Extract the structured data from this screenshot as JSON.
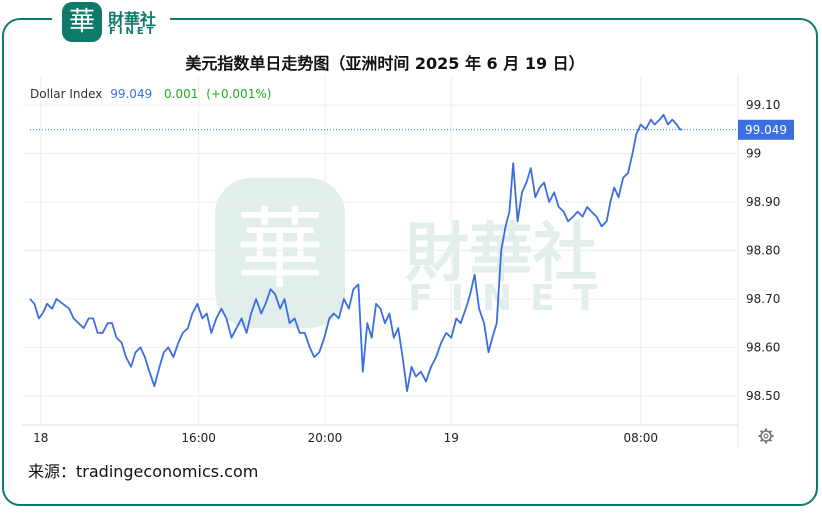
{
  "logo": {
    "badge": "華",
    "cn": "財華社",
    "en": "FINET"
  },
  "watermark": {
    "badge": "華",
    "cn": "財華社",
    "en": "FINET"
  },
  "title": "美元指数单日走势图（亚洲时间 2025 年 6 月 19 日）",
  "legend": {
    "name": "Dollar Index",
    "value": "99.049",
    "change": "0.001",
    "change_pct": "(+0.001%)"
  },
  "current_price_label": "99.049",
  "source": "来源：tradingeconomics.com",
  "settings_icon": "gear-icon",
  "colors": {
    "line": "#3b6fe0",
    "price_tag": "#3b6fe0",
    "change": "#22aa22",
    "brand": "#0f7a6a"
  },
  "chart_data": {
    "type": "line",
    "title": "美元指数单日走势图（亚洲时间 2025 年 6 月 19 日）",
    "xlabel": "",
    "ylabel": "",
    "x_ticks": [
      {
        "label": "18",
        "t": 0.5
      },
      {
        "label": "16:00",
        "t": 3.0
      },
      {
        "label": "20:00",
        "t": 5.0
      },
      {
        "label": "19",
        "t": 7.0
      },
      {
        "label": "08:00",
        "t": 10.0
      }
    ],
    "y_ticks": [
      {
        "label": "98.50",
        "v": 98.5
      },
      {
        "label": "98.60",
        "v": 98.6
      },
      {
        "label": "98.70",
        "v": 98.7
      },
      {
        "label": "98.80",
        "v": 98.8
      },
      {
        "label": "98.90",
        "v": 98.9
      },
      {
        "label": "99",
        "v": 99.0
      },
      {
        "label": "99.10",
        "v": 99.1
      }
    ],
    "xlim": [
      0.33,
      11.54
    ],
    "ylim": [
      98.44,
      99.16
    ],
    "grid": true,
    "last_value": 99.049,
    "series": [
      {
        "points": [
          [
            0.33,
            98.7
          ],
          [
            0.4,
            98.69
          ],
          [
            0.47,
            98.66
          ],
          [
            0.53,
            98.67
          ],
          [
            0.6,
            98.69
          ],
          [
            0.68,
            98.68
          ],
          [
            0.75,
            98.7
          ],
          [
            0.85,
            98.69
          ],
          [
            0.95,
            98.68
          ],
          [
            1.02,
            98.66
          ],
          [
            1.1,
            98.65
          ],
          [
            1.18,
            98.64
          ],
          [
            1.26,
            98.66
          ],
          [
            1.33,
            98.66
          ],
          [
            1.4,
            98.63
          ],
          [
            1.48,
            98.63
          ],
          [
            1.56,
            98.65
          ],
          [
            1.63,
            98.65
          ],
          [
            1.7,
            98.62
          ],
          [
            1.78,
            98.61
          ],
          [
            1.85,
            98.58
          ],
          [
            1.93,
            98.56
          ],
          [
            2.0,
            98.59
          ],
          [
            2.08,
            98.6
          ],
          [
            2.15,
            98.58
          ],
          [
            2.22,
            98.55
          ],
          [
            2.3,
            98.52
          ],
          [
            2.38,
            98.56
          ],
          [
            2.45,
            98.59
          ],
          [
            2.52,
            98.6
          ],
          [
            2.6,
            98.58
          ],
          [
            2.68,
            98.61
          ],
          [
            2.75,
            98.63
          ],
          [
            2.83,
            98.64
          ],
          [
            2.9,
            98.67
          ],
          [
            2.98,
            98.69
          ],
          [
            3.06,
            98.66
          ],
          [
            3.13,
            98.67
          ],
          [
            3.2,
            98.63
          ],
          [
            3.28,
            98.66
          ],
          [
            3.36,
            98.68
          ],
          [
            3.44,
            98.66
          ],
          [
            3.52,
            98.62
          ],
          [
            3.6,
            98.64
          ],
          [
            3.68,
            98.66
          ],
          [
            3.76,
            98.63
          ],
          [
            3.83,
            98.67
          ],
          [
            3.91,
            98.7
          ],
          [
            3.99,
            98.67
          ],
          [
            4.06,
            98.69
          ],
          [
            4.14,
            98.72
          ],
          [
            4.21,
            98.71
          ],
          [
            4.29,
            98.68
          ],
          [
            4.36,
            98.7
          ],
          [
            4.44,
            98.65
          ],
          [
            4.52,
            98.66
          ],
          [
            4.6,
            98.63
          ],
          [
            4.68,
            98.63
          ],
          [
            4.76,
            98.6
          ],
          [
            4.83,
            98.58
          ],
          [
            4.91,
            98.59
          ],
          [
            4.99,
            98.62
          ],
          [
            5.07,
            98.66
          ],
          [
            5.14,
            98.67
          ],
          [
            5.22,
            98.66
          ],
          [
            5.3,
            98.7
          ],
          [
            5.38,
            98.68
          ],
          [
            5.45,
            98.72
          ],
          [
            5.53,
            98.73
          ],
          [
            5.6,
            98.55
          ],
          [
            5.67,
            98.65
          ],
          [
            5.74,
            98.62
          ],
          [
            5.81,
            98.69
          ],
          [
            5.88,
            98.68
          ],
          [
            5.95,
            98.65
          ],
          [
            6.02,
            98.67
          ],
          [
            6.09,
            98.62
          ],
          [
            6.16,
            98.64
          ],
          [
            6.23,
            98.58
          ],
          [
            6.3,
            98.51
          ],
          [
            6.37,
            98.56
          ],
          [
            6.44,
            98.54
          ],
          [
            6.52,
            98.55
          ],
          [
            6.6,
            98.53
          ],
          [
            6.68,
            98.56
          ],
          [
            6.76,
            98.58
          ],
          [
            6.84,
            98.61
          ],
          [
            6.92,
            98.63
          ],
          [
            7.0,
            98.62
          ],
          [
            7.08,
            98.66
          ],
          [
            7.15,
            98.65
          ],
          [
            7.23,
            98.68
          ],
          [
            7.3,
            98.71
          ],
          [
            7.37,
            98.75
          ],
          [
            7.44,
            98.68
          ],
          [
            7.52,
            98.65
          ],
          [
            7.59,
            98.59
          ],
          [
            7.65,
            98.62
          ],
          [
            7.72,
            98.65
          ],
          [
            7.79,
            98.8
          ],
          [
            7.86,
            98.85
          ],
          [
            7.92,
            98.88
          ],
          [
            7.98,
            98.98
          ],
          [
            8.05,
            98.86
          ],
          [
            8.12,
            98.92
          ],
          [
            8.19,
            98.94
          ],
          [
            8.26,
            98.97
          ],
          [
            8.33,
            98.91
          ],
          [
            8.4,
            98.93
          ],
          [
            8.47,
            98.94
          ],
          [
            8.55,
            98.9
          ],
          [
            8.63,
            98.92
          ],
          [
            8.7,
            98.89
          ],
          [
            8.78,
            98.88
          ],
          [
            8.85,
            98.86
          ],
          [
            8.93,
            98.87
          ],
          [
            9.0,
            98.88
          ],
          [
            9.08,
            98.87
          ],
          [
            9.15,
            98.89
          ],
          [
            9.22,
            98.88
          ],
          [
            9.3,
            98.87
          ],
          [
            9.38,
            98.85
          ],
          [
            9.46,
            98.86
          ],
          [
            9.52,
            98.9
          ],
          [
            9.58,
            98.93
          ],
          [
            9.65,
            98.91
          ],
          [
            9.72,
            98.95
          ],
          [
            9.8,
            98.96
          ],
          [
            9.87,
            99.0
          ],
          [
            9.93,
            99.04
          ],
          [
            10.0,
            99.06
          ],
          [
            10.08,
            99.05
          ],
          [
            10.16,
            99.07
          ],
          [
            10.22,
            99.06
          ],
          [
            10.3,
            99.07
          ],
          [
            10.36,
            99.08
          ],
          [
            10.43,
            99.06
          ],
          [
            10.5,
            99.07
          ],
          [
            10.57,
            99.06
          ],
          [
            10.62,
            99.05
          ],
          [
            10.66,
            99.049
          ]
        ]
      }
    ]
  }
}
